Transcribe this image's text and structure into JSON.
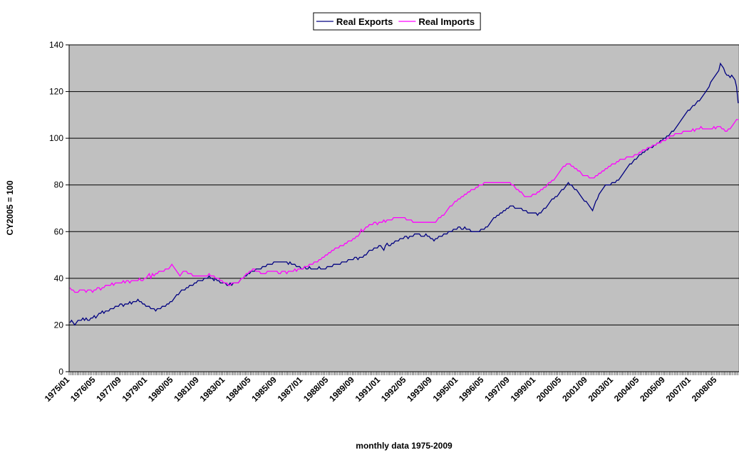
{
  "chart_data": {
    "type": "line",
    "y_label": "CY2005 = 100",
    "x_label": "monthly data 1975-2009",
    "ylim": [
      0,
      140
    ],
    "yticks": [
      0,
      20,
      40,
      60,
      80,
      100,
      120,
      140
    ],
    "grid": true,
    "legend": "top",
    "categories": [
      "1975/01",
      null,
      null,
      null,
      null,
      null,
      null,
      null,
      null,
      null,
      null,
      null,
      null,
      null,
      null,
      null,
      "1976/05",
      null,
      null,
      null,
      null,
      null,
      null,
      null,
      null,
      null,
      null,
      null,
      null,
      null,
      null,
      null,
      "1977/09",
      null,
      null,
      null,
      null,
      null,
      null,
      null,
      null,
      null,
      null,
      null,
      null,
      null,
      null,
      null,
      "1979/01",
      null,
      null,
      null,
      null,
      null,
      null,
      null,
      null,
      null,
      null,
      null,
      null,
      null,
      null,
      null,
      "1980/05",
      null,
      null,
      null,
      null,
      null,
      null,
      null,
      null,
      null,
      null,
      null,
      null,
      null,
      null,
      null,
      "1981/09",
      null,
      null,
      null,
      null,
      null,
      null,
      null,
      null,
      null,
      null,
      null,
      null,
      null,
      null,
      null,
      "1983/01",
      null,
      null,
      null,
      null,
      null,
      null,
      null,
      null,
      null,
      null,
      null,
      null,
      null,
      null,
      null,
      "1984/05",
      null,
      null,
      null,
      null,
      null,
      null,
      null,
      null,
      null,
      null,
      null,
      null,
      null,
      null,
      null,
      "1985/09",
      null,
      null,
      null,
      null,
      null,
      null,
      null,
      null,
      null,
      null,
      null,
      null,
      null,
      null,
      null,
      "1987/01",
      null,
      null,
      null,
      null,
      null,
      null,
      null,
      null,
      null,
      null,
      null,
      null,
      null,
      null,
      null,
      "1988/05",
      null,
      null,
      null,
      null,
      null,
      null,
      null,
      null,
      null,
      null,
      null,
      null,
      null,
      null,
      null,
      "1989/09",
      null,
      null,
      null,
      null,
      null,
      null,
      null,
      null,
      null,
      null,
      null,
      null,
      null,
      null,
      null,
      "1991/01",
      null,
      null,
      null,
      null,
      null,
      null,
      null,
      null,
      null,
      null,
      null,
      null,
      null,
      null,
      null,
      "1992/05",
      null,
      null,
      null,
      null,
      null,
      null,
      null,
      null,
      null,
      null,
      null,
      null,
      null,
      null,
      null,
      "1993/09",
      null,
      null,
      null,
      null,
      null,
      null,
      null,
      null,
      null,
      null,
      null,
      null,
      null,
      null,
      null,
      "1995/01",
      null,
      null,
      null,
      null,
      null,
      null,
      null,
      null,
      null,
      null,
      null,
      null,
      null,
      null,
      null,
      "1996/05",
      null,
      null,
      null,
      null,
      null,
      null,
      null,
      null,
      null,
      null,
      null,
      null,
      null,
      null,
      null,
      "1997/09",
      null,
      null,
      null,
      null,
      null,
      null,
      null,
      null,
      null,
      null,
      null,
      null,
      null,
      null,
      null,
      "1999/01",
      null,
      null,
      null,
      null,
      null,
      null,
      null,
      null,
      null,
      null,
      null,
      null,
      null,
      null,
      null,
      "2000/05",
      null,
      null,
      null,
      null,
      null,
      null,
      null,
      null,
      null,
      null,
      null,
      null,
      null,
      null,
      null,
      "2001/09",
      null,
      null,
      null,
      null,
      null,
      null,
      null,
      null,
      null,
      null,
      null,
      null,
      null,
      null,
      null,
      "2003/01",
      null,
      null,
      null,
      null,
      null,
      null,
      null,
      null,
      null,
      null,
      null,
      null,
      null,
      null,
      null,
      "2004/05",
      null,
      null,
      null,
      null,
      null,
      null,
      null,
      null,
      null,
      null,
      null,
      null,
      null,
      null,
      null,
      "2005/09",
      null,
      null,
      null,
      null,
      null,
      null,
      null,
      null,
      null,
      null,
      null,
      null,
      null,
      null,
      null,
      "2007/01",
      null,
      null,
      null,
      null,
      null,
      null,
      null,
      null,
      null,
      null,
      null,
      null,
      null,
      null,
      null,
      "2008/05",
      null,
      null,
      null,
      null,
      null,
      null,
      null,
      null,
      null,
      null,
      null,
      null,
      null
    ],
    "series": [
      {
        "name": "Real Exports",
        "color": "#000080",
        "values": [
          21,
          22,
          21,
          20,
          21,
          22,
          22,
          22,
          23,
          22,
          23,
          22,
          22,
          23,
          23,
          24,
          23,
          24,
          25,
          25,
          26,
          25,
          26,
          26,
          26,
          27,
          27,
          27,
          28,
          28,
          28,
          29,
          29,
          28,
          29,
          29,
          29,
          30,
          29,
          30,
          30,
          30,
          31,
          30,
          30,
          29,
          29,
          28,
          28,
          28,
          27,
          27,
          27,
          26,
          27,
          27,
          27,
          28,
          28,
          28,
          29,
          29,
          30,
          30,
          31,
          32,
          33,
          33,
          34,
          35,
          35,
          35,
          36,
          36,
          37,
          37,
          37,
          38,
          38,
          39,
          39,
          39,
          39,
          40,
          40,
          40,
          41,
          40,
          40,
          39,
          40,
          39,
          39,
          38,
          38,
          38,
          38,
          37,
          37,
          38,
          37,
          38,
          38,
          38,
          38,
          39,
          40,
          40,
          41,
          41,
          42,
          42,
          43,
          43,
          43,
          44,
          44,
          44,
          44,
          45,
          45,
          45,
          46,
          46,
          46,
          46,
          47,
          47,
          47,
          47,
          47,
          47,
          47,
          47,
          47,
          46,
          47,
          46,
          46,
          46,
          45,
          45,
          45,
          44,
          44,
          45,
          44,
          44,
          45,
          44,
          44,
          44,
          44,
          44,
          45,
          44,
          44,
          44,
          44,
          45,
          45,
          45,
          45,
          46,
          46,
          46,
          46,
          46,
          47,
          47,
          47,
          47,
          48,
          48,
          48,
          48,
          49,
          49,
          48,
          49,
          49,
          49,
          50,
          50,
          51,
          52,
          52,
          52,
          53,
          53,
          53,
          54,
          54,
          53,
          52,
          54,
          55,
          54,
          54,
          55,
          55,
          56,
          56,
          56,
          57,
          57,
          57,
          58,
          58,
          57,
          58,
          58,
          58,
          59,
          59,
          59,
          59,
          58,
          58,
          58,
          59,
          58,
          58,
          57,
          57,
          56,
          57,
          57,
          58,
          58,
          58,
          59,
          59,
          59,
          60,
          60,
          60,
          61,
          61,
          61,
          62,
          62,
          61,
          61,
          62,
          61,
          61,
          61,
          60,
          60,
          60,
          60,
          60,
          60,
          61,
          61,
          61,
          62,
          62,
          63,
          64,
          65,
          66,
          66,
          67,
          67,
          68,
          68,
          69,
          69,
          70,
          70,
          71,
          71,
          71,
          70,
          70,
          70,
          70,
          70,
          69,
          69,
          69,
          68,
          68,
          68,
          68,
          68,
          68,
          67,
          68,
          68,
          69,
          70,
          70,
          71,
          72,
          73,
          74,
          74,
          75,
          75,
          76,
          77,
          78,
          78,
          79,
          80,
          81,
          80,
          80,
          79,
          78,
          78,
          77,
          76,
          75,
          74,
          73,
          73,
          72,
          71,
          70,
          69,
          71,
          73,
          74,
          76,
          77,
          78,
          79,
          80,
          80,
          80,
          80,
          81,
          81,
          81,
          82,
          82,
          83,
          84,
          85,
          86,
          87,
          88,
          89,
          89,
          90,
          91,
          91,
          92,
          93,
          93,
          94,
          94,
          95,
          95,
          96,
          96,
          96,
          97,
          97,
          98,
          98,
          99,
          99,
          100,
          100,
          101,
          101,
          102,
          103,
          103,
          104,
          105,
          106,
          107,
          108,
          109,
          110,
          111,
          112,
          112,
          113,
          114,
          114,
          115,
          116,
          116,
          117,
          118,
          119,
          120,
          121,
          122,
          124,
          125,
          126,
          127,
          128,
          129,
          132,
          131,
          130,
          128,
          127,
          127,
          126,
          127,
          126,
          125,
          122,
          115
        ]
      },
      {
        "name": "Real Imports",
        "color": "#ff00ff",
        "values": [
          36,
          35,
          35,
          34,
          34,
          34,
          35,
          35,
          35,
          35,
          34,
          35,
          35,
          35,
          34,
          35,
          35,
          36,
          36,
          35,
          36,
          36,
          37,
          37,
          37,
          37,
          38,
          37,
          38,
          38,
          38,
          38,
          38,
          39,
          38,
          39,
          39,
          38,
          39,
          39,
          39,
          39,
          39,
          40,
          39,
          39,
          40,
          40,
          41,
          42,
          40,
          42,
          41,
          42,
          42,
          43,
          43,
          43,
          43,
          44,
          44,
          44,
          45,
          46,
          45,
          44,
          43,
          42,
          41,
          42,
          43,
          43,
          43,
          42,
          42,
          42,
          41,
          41,
          41,
          41,
          41,
          41,
          41,
          41,
          41,
          41,
          42,
          41,
          41,
          41,
          40,
          40,
          40,
          39,
          39,
          38,
          38,
          38,
          37,
          37,
          38,
          38,
          38,
          38,
          38,
          39,
          40,
          40,
          41,
          42,
          42,
          43,
          43,
          44,
          44,
          43,
          43,
          43,
          42,
          42,
          42,
          42,
          43,
          43,
          43,
          43,
          43,
          43,
          43,
          42,
          42,
          43,
          43,
          43,
          42,
          43,
          43,
          43,
          43,
          44,
          43,
          44,
          44,
          44,
          44,
          45,
          45,
          45,
          46,
          46,
          46,
          47,
          47,
          47,
          48,
          48,
          49,
          49,
          50,
          50,
          51,
          51,
          52,
          52,
          53,
          53,
          53,
          54,
          54,
          54,
          55,
          55,
          56,
          56,
          56,
          57,
          57,
          58,
          58,
          59,
          61,
          60,
          61,
          62,
          62,
          63,
          63,
          63,
          64,
          64,
          63,
          64,
          64,
          64,
          65,
          64,
          65,
          65,
          65,
          65,
          66,
          66,
          66,
          66,
          66,
          66,
          66,
          66,
          65,
          65,
          65,
          65,
          64,
          64,
          64,
          64,
          64,
          64,
          64,
          64,
          64,
          64,
          64,
          64,
          64,
          64,
          64,
          65,
          66,
          66,
          67,
          67,
          68,
          69,
          70,
          71,
          71,
          72,
          73,
          73,
          74,
          74,
          75,
          75,
          76,
          76,
          77,
          77,
          78,
          78,
          78,
          79,
          79,
          80,
          80,
          80,
          81,
          81,
          81,
          81,
          81,
          81,
          81,
          81,
          81,
          81,
          81,
          81,
          81,
          81,
          81,
          81,
          81,
          80,
          80,
          79,
          78,
          78,
          77,
          77,
          76,
          75,
          75,
          75,
          75,
          75,
          76,
          76,
          76,
          77,
          77,
          78,
          78,
          79,
          79,
          80,
          81,
          81,
          82,
          82,
          83,
          84,
          85,
          86,
          87,
          88,
          88,
          89,
          89,
          89,
          88,
          88,
          87,
          87,
          86,
          86,
          85,
          84,
          84,
          84,
          84,
          83,
          83,
          83,
          83,
          84,
          84,
          85,
          85,
          86,
          86,
          87,
          87,
          88,
          88,
          89,
          89,
          89,
          90,
          90,
          91,
          91,
          91,
          91,
          92,
          92,
          92,
          92,
          92,
          93,
          93,
          93,
          94,
          94,
          95,
          95,
          95,
          96,
          96,
          96,
          97,
          97,
          97,
          98,
          98,
          98,
          99,
          99,
          99,
          100,
          100,
          101,
          101,
          101,
          102,
          102,
          102,
          102,
          102,
          103,
          103,
          103,
          103,
          103,
          103,
          104,
          103,
          104,
          104,
          104,
          105,
          104,
          104,
          104,
          104,
          104,
          104,
          104,
          105,
          104,
          105,
          105,
          105,
          104,
          104,
          103,
          103,
          104,
          104,
          105,
          106,
          107,
          108,
          108
        ]
      }
    ]
  }
}
